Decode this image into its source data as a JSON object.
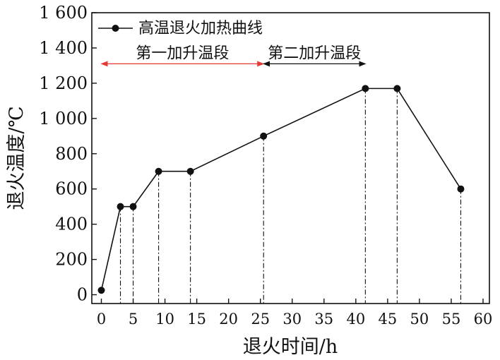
{
  "chart_data": {
    "type": "line",
    "xlabel": "退火时间/h",
    "ylabel": "退火温度/℃",
    "xlim": [
      -1.5,
      61
    ],
    "ylim": [
      -50,
      1600
    ],
    "x_ticks": [
      0,
      5,
      10,
      15,
      20,
      25,
      30,
      35,
      40,
      45,
      50,
      55,
      60
    ],
    "y_ticks": [
      0,
      200,
      400,
      600,
      800,
      1000,
      1200,
      1400,
      1600
    ],
    "x_tick_labels": [
      "0",
      "5",
      "10",
      "15",
      "20",
      "25",
      "30",
      "35",
      "40",
      "45",
      "50",
      "55",
      "60"
    ],
    "y_tick_labels": [
      "0",
      "200",
      "400",
      "600",
      "800",
      "1 000",
      "1 200",
      "1 400",
      "1 600"
    ],
    "grid": false,
    "legend_position": "top-left",
    "series": [
      {
        "name": "高温退火加热曲线",
        "color": "#111111",
        "marker": "circle",
        "x": [
          0,
          3,
          5,
          9,
          14,
          25.5,
          41.5,
          46.5,
          56.5
        ],
        "y": [
          25,
          500,
          500,
          700,
          700,
          900,
          1170,
          1170,
          600
        ]
      }
    ],
    "drop_lines": {
      "style": "dash-dot",
      "to": "x-axis"
    },
    "annotations": [
      {
        "text": "第一加升温段",
        "x_start": 0,
        "x_end": 25.5,
        "y": 1310,
        "color": "#e53935",
        "arrow": "both"
      },
      {
        "text": "第二加升温段",
        "x_start": 25.5,
        "x_end": 41.5,
        "y": 1310,
        "color": "#111111",
        "arrow": "both"
      }
    ]
  }
}
